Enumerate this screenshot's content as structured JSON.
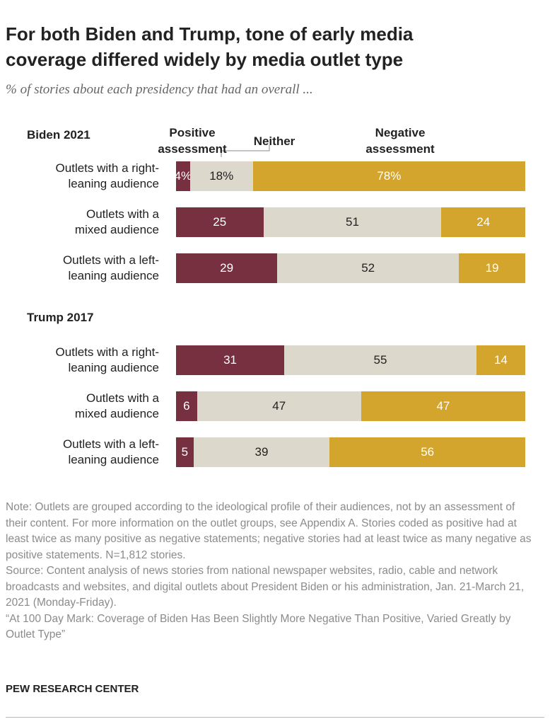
{
  "header": {
    "title": "For both Biden and Trump, tone of early media coverage differed widely by media outlet type",
    "subtitle": "% of stories about each presidency that had an overall ..."
  },
  "chart_data": [
    {
      "type": "bar",
      "orientation": "horizontal",
      "stacked": true,
      "title": "Biden 2021",
      "legend": true,
      "xlim": [
        0,
        100
      ],
      "categories": [
        [
          "Outlets with a right-",
          "leaning audience"
        ],
        [
          "Outlets with a",
          "mixed audience"
        ],
        [
          "Outlets with a left-",
          "leaning audience"
        ]
      ],
      "series": [
        {
          "name": [
            "Positive",
            "assessment"
          ],
          "color": "#76303f",
          "values": [
            4,
            25,
            29
          ],
          "value_labels": [
            "4%",
            "25",
            "29"
          ]
        },
        {
          "name": [
            "Neither"
          ],
          "color": "#dcd8cc",
          "values": [
            18,
            51,
            52
          ],
          "value_labels": [
            "18%",
            "51",
            "52"
          ]
        },
        {
          "name": [
            "Negative",
            "assessment"
          ],
          "color": "#d4a52c",
          "values": [
            78,
            24,
            19
          ],
          "value_labels": [
            "78%",
            "24",
            "19"
          ]
        }
      ]
    },
    {
      "type": "bar",
      "orientation": "horizontal",
      "stacked": true,
      "title": "Trump 2017",
      "legend": false,
      "xlim": [
        0,
        100
      ],
      "categories": [
        [
          "Outlets with a right-",
          "leaning audience"
        ],
        [
          "Outlets with a",
          "mixed audience"
        ],
        [
          "Outlets with a left-",
          "leaning audience"
        ]
      ],
      "series": [
        {
          "name": [
            "Positive",
            "assessment"
          ],
          "color": "#76303f",
          "values": [
            31,
            6,
            5
          ]
        },
        {
          "name": [
            "Neither"
          ],
          "color": "#dcd8cc",
          "values": [
            55,
            47,
            39
          ]
        },
        {
          "name": [
            "Negative",
            "assessment"
          ],
          "color": "#d4a52c",
          "values": [
            14,
            47,
            56
          ]
        }
      ]
    }
  ],
  "notes": {
    "note": "Note: Outlets are grouped according to the ideological profile of their audiences, not by an assessment of their content. For more information on the outlet groups, see Appendix A. Stories coded as positive had at least twice as many positive as negative statements; negative stories had at least twice as many negative as positive statements. N=1,812 stories.",
    "source": "Source: Content analysis of news stories from national newspaper websites, radio, cable and network broadcasts and websites, and digital outlets about President Biden or his administration, Jan. 21-March 21, 2021 (Monday-Friday).",
    "citation": "“At 100 Day Mark: Coverage of Biden Has Been Slightly More Negative Than Positive, Varied Greatly by Outlet Type”"
  },
  "footer": "PEW RESEARCH CENTER"
}
